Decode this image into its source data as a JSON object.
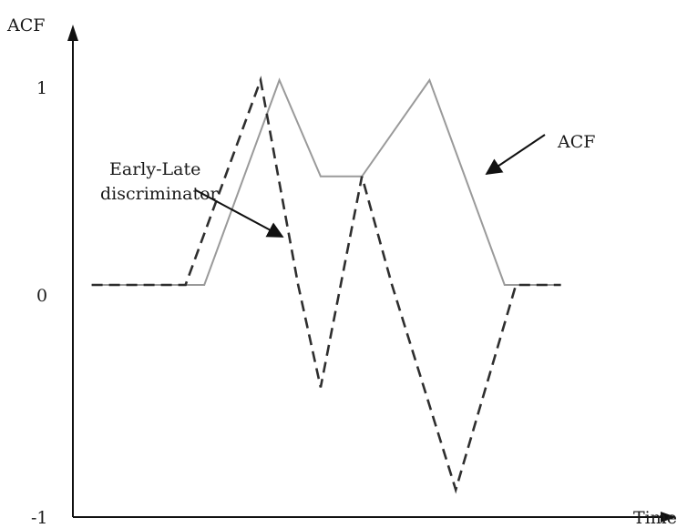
{
  "labels": {
    "y_axis": "ACF",
    "x_axis": "Time",
    "tick_one": "1",
    "tick_zero": "0",
    "tick_minus_one": "-1",
    "acf_annotation": "ACF",
    "el_annotation_line1": "Early-Late",
    "el_annotation_line2": "discriminator"
  },
  "colors": {
    "acf_curve": "#9a9a9a",
    "early_late_curve": "#2e2e2e"
  },
  "curves": {
    "acf": [
      [
        0.5,
        0
      ],
      [
        3.5,
        0
      ],
      [
        5.5,
        1
      ],
      [
        6.6,
        0.53
      ],
      [
        7.7,
        0.53
      ],
      [
        9.5,
        1
      ],
      [
        11.5,
        0
      ],
      [
        13,
        0
      ]
    ],
    "early_late": [
      [
        0.5,
        0
      ],
      [
        3,
        0
      ],
      [
        5,
        1
      ],
      [
        6,
        0
      ],
      [
        6.6,
        -0.5
      ],
      [
        7.7,
        0.53
      ],
      [
        8.5,
        0
      ],
      [
        10.2,
        -1
      ],
      [
        11.8,
        0
      ],
      [
        13,
        0
      ]
    ]
  }
}
